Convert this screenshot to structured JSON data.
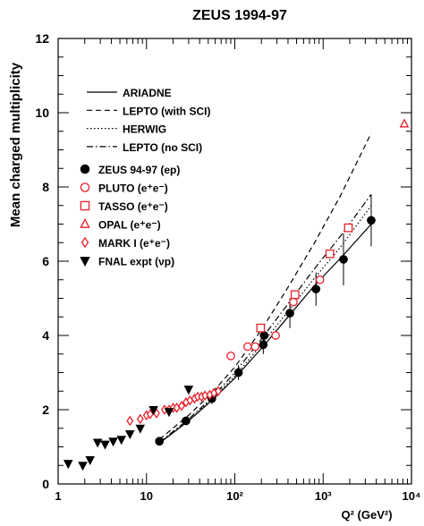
{
  "chart_data": {
    "type": "scatter",
    "title": "ZEUS 1994-97",
    "xlabel": "Q² (GeV²)",
    "ylabel": "Mean charged multiplicity",
    "x_scale": "log",
    "xlim": [
      1,
      10000
    ],
    "ylim": [
      0,
      12
    ],
    "x_ticks": [
      {
        "value": 1,
        "label": "1"
      },
      {
        "value": 10,
        "label": "10"
      },
      {
        "value": 100,
        "label": "10²"
      },
      {
        "value": 1000,
        "label": "10³"
      },
      {
        "value": 10000,
        "label": "10⁴"
      }
    ],
    "y_ticks": [
      0,
      2,
      4,
      6,
      8,
      10,
      12
    ],
    "legend_placement": "top-left",
    "models": [
      {
        "name": "ARIADNE",
        "style": "solid",
        "points": [
          [
            14,
            1.1
          ],
          [
            30,
            1.7
          ],
          [
            55,
            2.25
          ],
          [
            100,
            2.85
          ],
          [
            200,
            3.65
          ],
          [
            400,
            4.5
          ],
          [
            800,
            5.35
          ],
          [
            1600,
            6.1
          ],
          [
            3500,
            7.0
          ]
        ]
      },
      {
        "name": "LEPTO (with SCI)",
        "style": "dashed",
        "points": [
          [
            14,
            1.2
          ],
          [
            30,
            1.85
          ],
          [
            55,
            2.45
          ],
          [
            100,
            3.15
          ],
          [
            200,
            4.15
          ],
          [
            400,
            5.3
          ],
          [
            800,
            6.5
          ],
          [
            1600,
            7.8
          ],
          [
            3500,
            9.45
          ]
        ]
      },
      {
        "name": "HERWIG",
        "style": "dotted",
        "points": [
          [
            14,
            1.1
          ],
          [
            30,
            1.7
          ],
          [
            55,
            2.3
          ],
          [
            100,
            2.9
          ],
          [
            200,
            3.75
          ],
          [
            400,
            4.65
          ],
          [
            800,
            5.55
          ],
          [
            1600,
            6.4
          ],
          [
            3500,
            7.5
          ]
        ]
      },
      {
        "name": "LEPTO (no SCI)",
        "style": "dashdot",
        "points": [
          [
            14,
            1.12
          ],
          [
            30,
            1.75
          ],
          [
            55,
            2.32
          ],
          [
            100,
            3.0
          ],
          [
            200,
            3.9
          ],
          [
            400,
            4.85
          ],
          [
            800,
            5.8
          ],
          [
            1600,
            6.7
          ],
          [
            3500,
            7.8
          ]
        ]
      }
    ],
    "series": [
      {
        "name": "ZEUS 94-97 (ep)",
        "marker": "filled-circle",
        "color": "#000000",
        "points": [
          [
            14,
            1.15
          ],
          [
            28,
            1.7
          ],
          [
            55,
            2.3
          ],
          [
            110,
            3.0
          ],
          [
            210,
            3.75
          ],
          [
            215,
            4.0
          ],
          [
            420,
            4.6
          ],
          [
            830,
            5.25
          ],
          [
            1700,
            6.05
          ],
          [
            3500,
            7.1
          ]
        ],
        "yerr": [
          0.1,
          0.12,
          0.15,
          0.2,
          0.25,
          0.25,
          0.4,
          0.45,
          0.7,
          0.7
        ]
      },
      {
        "name": "PLUTO (e⁺e⁻)",
        "marker": "open-circle",
        "color": "#e8202a",
        "points": [
          [
            90,
            3.45
          ],
          [
            140,
            3.7
          ],
          [
            170,
            3.7
          ],
          [
            290,
            4.0
          ],
          [
            460,
            4.9
          ],
          [
            920,
            5.5
          ]
        ]
      },
      {
        "name": "TASSO (e⁺e⁻)",
        "marker": "open-square",
        "color": "#e8202a",
        "points": [
          [
            196,
            4.2
          ],
          [
            480,
            5.1
          ],
          [
            1190,
            6.2
          ],
          [
            1930,
            6.9
          ]
        ]
      },
      {
        "name": "OPAL (e⁺e⁻)",
        "marker": "open-triangle",
        "color": "#e8202a",
        "points": [
          [
            8300,
            9.7
          ]
        ]
      },
      {
        "name": "MARK I (e⁺e⁻)",
        "marker": "open-diamond",
        "color": "#e8202a",
        "points": [
          [
            6.5,
            1.7
          ],
          [
            8.5,
            1.75
          ],
          [
            10,
            1.85
          ],
          [
            11,
            1.88
          ],
          [
            13,
            1.9
          ],
          [
            16,
            2.0
          ],
          [
            18,
            2.0
          ],
          [
            20,
            2.05
          ],
          [
            22,
            2.05
          ],
          [
            25,
            2.1
          ],
          [
            28,
            2.2
          ],
          [
            31,
            2.25
          ],
          [
            35,
            2.3
          ],
          [
            38,
            2.35
          ],
          [
            42,
            2.35
          ],
          [
            46,
            2.38
          ],
          [
            52,
            2.4
          ],
          [
            58,
            2.45
          ],
          [
            65,
            2.5
          ]
        ]
      },
      {
        "name": "FNAL expt (νp)",
        "marker": "filled-triangle-down",
        "color": "#000000",
        "points": [
          [
            1.3,
            0.55
          ],
          [
            1.9,
            0.5
          ],
          [
            2.3,
            0.65
          ],
          [
            2.8,
            1.12
          ],
          [
            3.4,
            1.07
          ],
          [
            4.2,
            1.15
          ],
          [
            5.2,
            1.2
          ],
          [
            6.5,
            1.35
          ],
          [
            8.5,
            1.5
          ],
          [
            12,
            2.0
          ],
          [
            18,
            1.95
          ],
          [
            30,
            2.55
          ]
        ]
      }
    ]
  }
}
